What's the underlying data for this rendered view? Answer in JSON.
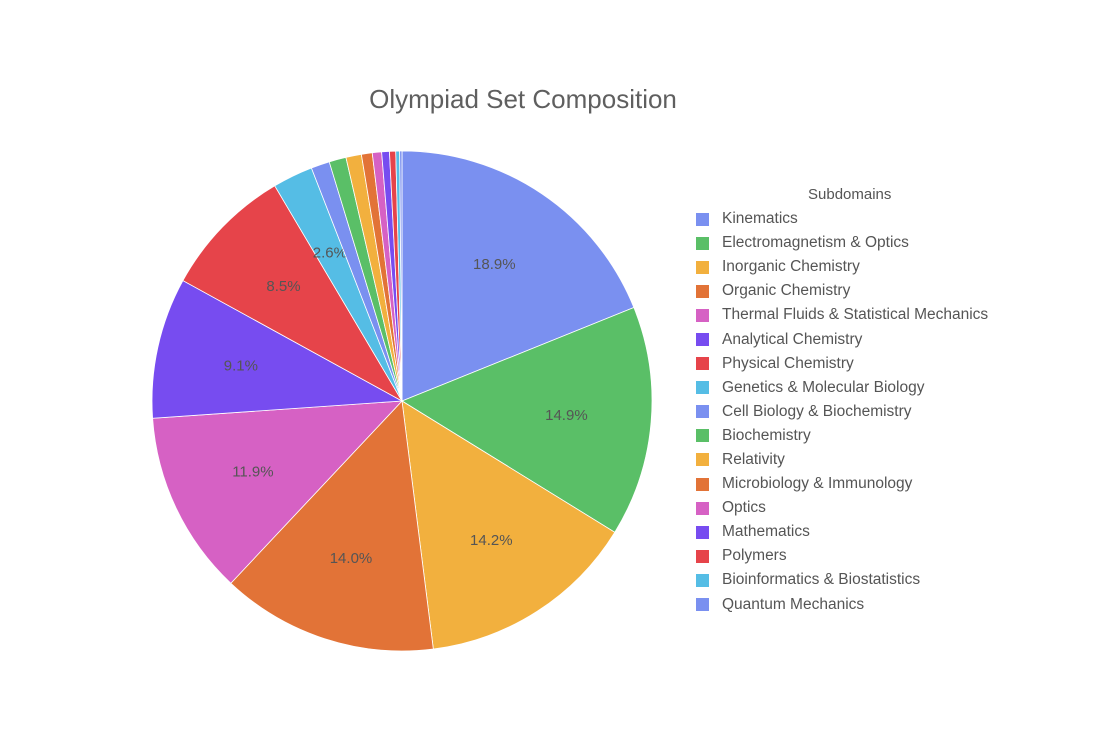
{
  "chart_data": {
    "type": "pie",
    "title": "Olympiad Set Composition",
    "legend_title": "Subdomains",
    "legend_position": "right",
    "slices": [
      {
        "name": "Kinematics",
        "value": 18.9,
        "label": "18.9%",
        "color": "#7a90f0"
      },
      {
        "name": "Electromagnetism & Optics",
        "value": 14.9,
        "label": "14.9%",
        "color": "#5abf67"
      },
      {
        "name": "Inorganic Chemistry",
        "value": 14.2,
        "label": "14.2%",
        "color": "#f2b03e"
      },
      {
        "name": "Organic Chemistry",
        "value": 14.0,
        "label": "14.0%",
        "color": "#e27337"
      },
      {
        "name": "Thermal Fluids & Statistical Mechanics",
        "value": 11.9,
        "label": "11.9%",
        "color": "#d661c4"
      },
      {
        "name": "Analytical Chemistry",
        "value": 9.1,
        "label": "9.1%",
        "color": "#774cf0"
      },
      {
        "name": "Physical Chemistry",
        "value": 8.5,
        "label": "8.5%",
        "color": "#e6444a"
      },
      {
        "name": "Genetics & Molecular Biology",
        "value": 2.6,
        "label": "2.6%",
        "color": "#55bde5"
      },
      {
        "name": "Cell Biology & Biochemistry",
        "value": 1.2,
        "label": "",
        "color": "#7a90f0"
      },
      {
        "name": "Biochemistry",
        "value": 1.1,
        "label": "",
        "color": "#5abf67"
      },
      {
        "name": "Relativity",
        "value": 1.0,
        "label": "",
        "color": "#f2b03e"
      },
      {
        "name": "Microbiology & Immunology",
        "value": 0.7,
        "label": "",
        "color": "#e27337"
      },
      {
        "name": "Optics",
        "value": 0.6,
        "label": "",
        "color": "#d661c4"
      },
      {
        "name": "Mathematics",
        "value": 0.5,
        "label": "",
        "color": "#774cf0"
      },
      {
        "name": "Polymers",
        "value": 0.4,
        "label": "",
        "color": "#e6444a"
      },
      {
        "name": "Bioinformatics & Biostatistics",
        "value": 0.25,
        "label": "",
        "color": "#55bde5"
      },
      {
        "name": "Quantum Mechanics",
        "value": 0.15,
        "label": "",
        "color": "#7a90f0"
      }
    ]
  }
}
